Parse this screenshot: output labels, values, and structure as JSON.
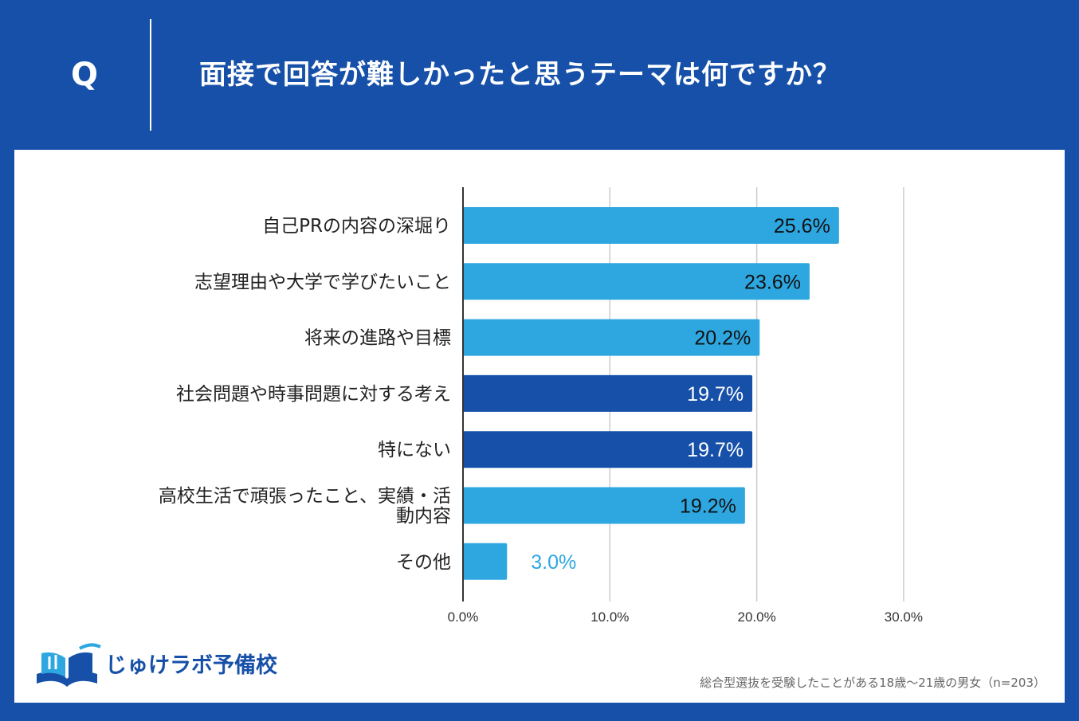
{
  "header": {
    "q_mark": "Q",
    "question": "面接で回答が難しかったと思うテーマは何ですか？"
  },
  "colors": {
    "background": "#1650a8",
    "panel": "#ffffff",
    "bar_light": "#2ea7e0",
    "bar_dark": "#1650a8",
    "grid": "#cccccc",
    "axis": "#333333"
  },
  "chart_data": {
    "type": "bar",
    "orientation": "horizontal",
    "title": "面接で回答が難しかったと思うテーマは何ですか？",
    "xlabel": "",
    "ylabel": "",
    "xlim": [
      0,
      30
    ],
    "grid": true,
    "ticks": [
      0,
      10,
      20,
      30
    ],
    "tick_labels": [
      "0.0%",
      "10.0%",
      "20.0%",
      "30.0%"
    ],
    "categories": [
      [
        "自己PRの内容の深堀り"
      ],
      [
        "志望理由や大学で学びたいこと"
      ],
      [
        "将来の進路や目標"
      ],
      [
        "社会問題や時事問題に対する考え"
      ],
      [
        "特にない"
      ],
      [
        "高校生活で頑張ったこと、実績・活",
        "動内容"
      ],
      [
        "その他"
      ]
    ],
    "values": [
      25.6,
      23.6,
      20.2,
      19.7,
      19.7,
      19.2,
      3.0
    ],
    "value_labels": [
      "25.6%",
      "23.6%",
      "20.2%",
      "19.7%",
      "19.7%",
      "19.2%",
      "3.0%"
    ],
    "highlight": [
      false,
      false,
      false,
      true,
      true,
      false,
      false
    ]
  },
  "logo": {
    "icon": "book-icon",
    "text": "じゅけラボ予備校"
  },
  "footnote": "総合型選抜を受験したことがある18歳～21歳の男女（n=203）"
}
